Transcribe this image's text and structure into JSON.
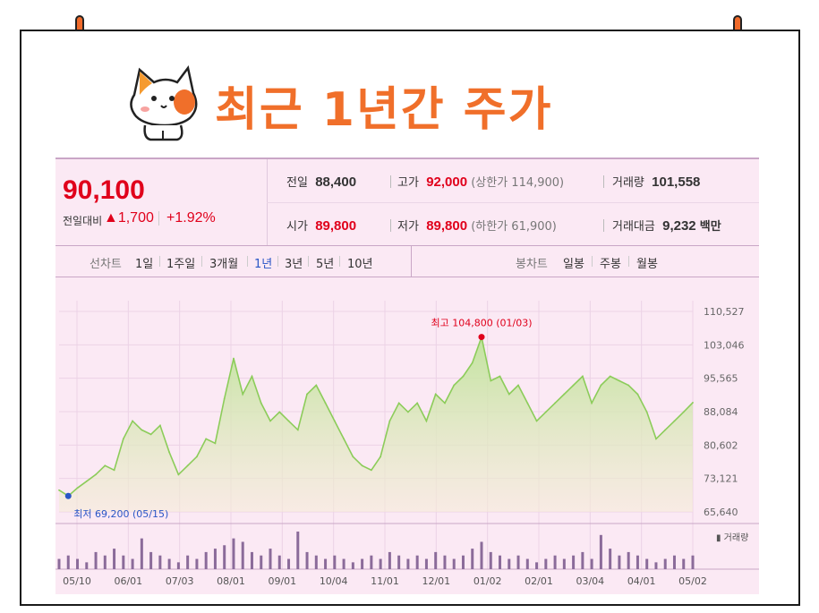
{
  "title": "최근 1년간 주가",
  "quote": {
    "price": "90,100",
    "change_label": "전일대비",
    "change_value": "▲1,700",
    "change_pct": "+1.92%",
    "prev_label": "전일",
    "prev_value": "88,400",
    "open_label": "시가",
    "open_value": "89,800",
    "high_label": "고가",
    "high_value": "92,000",
    "upper_limit": "(상한가 114,900)",
    "low_label": "저가",
    "low_value": "89,800",
    "lower_limit": "(하한가 61,900)",
    "volume_label": "거래량",
    "volume_value": "101,558",
    "amount_label": "거래대금",
    "amount_value": "9,232",
    "amount_unit": "백만"
  },
  "tabs": {
    "line_label": "선차트",
    "line_items": [
      "1일",
      "1주일",
      "3개월",
      "1년",
      "3년",
      "5년",
      "10년"
    ],
    "selected": "1년",
    "candle_label": "봉차트",
    "candle_items": [
      "일봉",
      "주봉",
      "월봉"
    ]
  },
  "colors": {
    "accent": "#f06f2a",
    "up": "#e0001b",
    "line": "#8ccc5a",
    "low_marker": "#2a56c6",
    "volume": "#8b6b9a"
  },
  "chart_data": {
    "type": "area",
    "x_ticks": [
      "05/10",
      "06/01",
      "07/03",
      "08/01",
      "09/01",
      "10/04",
      "11/01",
      "12/01",
      "01/02",
      "02/01",
      "03/04",
      "04/01",
      "05/02"
    ],
    "y_ticks": [
      "110,527",
      "103,046",
      "95,565",
      "88,084",
      "80,602",
      "73,121",
      "65,640"
    ],
    "ylim": [
      65640,
      110527
    ],
    "series": [
      {
        "values": [
          70500,
          69200,
          71000,
          72500,
          74000,
          76000,
          75000,
          82000,
          86000,
          84000,
          83000,
          85000,
          79000,
          74000,
          76000,
          78000,
          82000,
          81000,
          91000,
          100000,
          92000,
          96000,
          90000,
          86000,
          88000,
          86000,
          84000,
          92000,
          94000,
          90000,
          86000,
          82000,
          78000,
          76000,
          75000,
          78000,
          86000,
          90000,
          88000,
          90000,
          86000,
          92000,
          90000,
          94000,
          96000,
          99000,
          104800,
          95000,
          96000,
          92000,
          94000,
          90000,
          86000,
          88000,
          90000,
          92000,
          94000,
          96000,
          90000,
          94000,
          96000,
          95000,
          94000,
          92000,
          88000,
          82000,
          84000,
          86000,
          88000,
          90100
        ]
      }
    ],
    "volume_label": "거래량",
    "volume": [
      3,
      4,
      3,
      2,
      5,
      4,
      6,
      4,
      3,
      9,
      5,
      4,
      3,
      2,
      4,
      3,
      5,
      6,
      7,
      9,
      8,
      5,
      4,
      6,
      4,
      3,
      11,
      5,
      4,
      3,
      4,
      3,
      2,
      3,
      4,
      3,
      5,
      4,
      3,
      4,
      3,
      5,
      4,
      3,
      4,
      6,
      8,
      5,
      4,
      3,
      4,
      3,
      2,
      3,
      4,
      3,
      4,
      5,
      3,
      10,
      6,
      4,
      5,
      4,
      3,
      2,
      3,
      4,
      3,
      4
    ],
    "annotations": [
      {
        "text": "최고 104,800 (01/03)"
      },
      {
        "text": "최저 69,200 (05/15)"
      }
    ]
  }
}
